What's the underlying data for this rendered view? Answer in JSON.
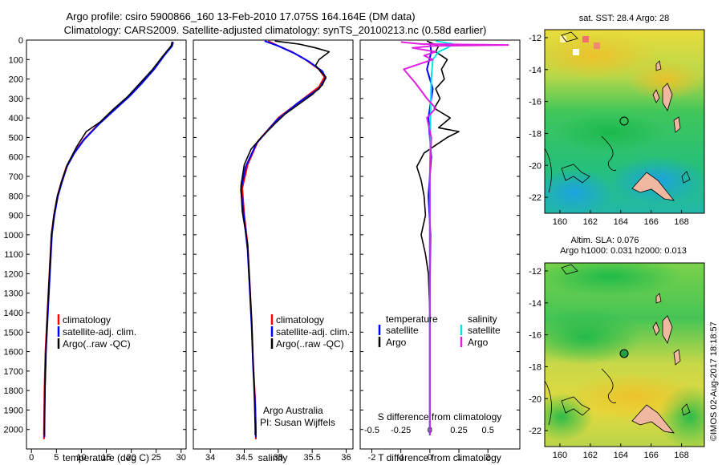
{
  "header": {
    "line1": "Argo profile: csiro 5900866_160 13-Feb-2010 17.075S 164.164E (DM data)",
    "line2": "Climatology: CARS2009. Satellite-adjusted climatology: synTS_20100213.nc (0.58d earlier)"
  },
  "footer": {
    "watermark": "©IMOS 02-Aug-2017 18:18:57",
    "credit_line1": "Argo Australia",
    "credit_line2": "PI: Susan Wijffels"
  },
  "colors": {
    "climatology": "#ff0000",
    "satellite": "#0000ff",
    "argo": "#000000",
    "salinity_satellite": "#00e5e5",
    "salinity_argo": "#e020e0"
  },
  "chart_data": [
    {
      "id": "temperature-profile",
      "type": "line",
      "xlabel": "temperature (deg C)",
      "ylabel": "",
      "xlim": [
        -1,
        31
      ],
      "ylim": [
        2100,
        0
      ],
      "xticks": [
        0,
        5,
        10,
        15,
        20,
        25,
        30
      ],
      "yticks": [
        0,
        100,
        200,
        300,
        400,
        500,
        600,
        700,
        800,
        900,
        1000,
        1100,
        1200,
        1300,
        1400,
        1500,
        1600,
        1700,
        1800,
        1900,
        2000
      ],
      "legend": [
        "climatology",
        "satellite-adj. clim.",
        "Argo(..raw -QC)"
      ],
      "series": [
        {
          "name": "climatology",
          "color": "#ff0000",
          "points": [
            [
              28.3,
              10
            ],
            [
              28.1,
              30
            ],
            [
              26.5,
              80
            ],
            [
              24.5,
              150
            ],
            [
              22,
              220
            ],
            [
              19.5,
              290
            ],
            [
              16.5,
              360
            ],
            [
              13.5,
              430
            ],
            [
              10.5,
              510
            ],
            [
              8.5,
              580
            ],
            [
              7,
              650
            ],
            [
              6,
              730
            ],
            [
              5.2,
              800
            ],
            [
              4.5,
              900
            ],
            [
              4.0,
              1000
            ],
            [
              3.6,
              1200
            ],
            [
              3.2,
              1400
            ],
            [
              2.8,
              1600
            ],
            [
              2.6,
              1800
            ],
            [
              2.5,
              2000
            ],
            [
              2.5,
              2050
            ]
          ]
        },
        {
          "name": "satellite",
          "color": "#0000ff",
          "points": [
            [
              28.4,
              10
            ],
            [
              28.2,
              30
            ],
            [
              26.6,
              80
            ],
            [
              24.6,
              150
            ],
            [
              22.2,
              220
            ],
            [
              19.6,
              290
            ],
            [
              16.6,
              360
            ],
            [
              13.6,
              430
            ],
            [
              10.6,
              510
            ],
            [
              8.6,
              580
            ],
            [
              7.1,
              650
            ],
            [
              6.1,
              730
            ],
            [
              5.3,
              800
            ],
            [
              4.6,
              900
            ],
            [
              4.1,
              1000
            ],
            [
              3.7,
              1200
            ],
            [
              3.3,
              1400
            ],
            [
              2.9,
              1600
            ],
            [
              2.7,
              1800
            ],
            [
              2.6,
              2000
            ],
            [
              2.6,
              2040
            ]
          ]
        },
        {
          "name": "Argo",
          "color": "#000000",
          "points": [
            [
              28.2,
              8
            ],
            [
              28.0,
              30
            ],
            [
              26.4,
              80
            ],
            [
              24.3,
              150
            ],
            [
              21.8,
              220
            ],
            [
              19.3,
              290
            ],
            [
              16.2,
              360
            ],
            [
              13.8,
              420
            ],
            [
              11,
              470
            ],
            [
              9,
              550
            ],
            [
              7.2,
              640
            ],
            [
              6.1,
              720
            ],
            [
              5.2,
              800
            ],
            [
              4.5,
              900
            ],
            [
              4.0,
              1000
            ],
            [
              3.6,
              1200
            ],
            [
              3.2,
              1400
            ],
            [
              2.9,
              1600
            ],
            [
              2.7,
              1800
            ],
            [
              2.6,
              2000
            ],
            [
              2.6,
              2030
            ]
          ]
        }
      ]
    },
    {
      "id": "salinity-profile",
      "type": "line",
      "xlabel": "salinity",
      "xlim": [
        33.75,
        36.1
      ],
      "ylim": [
        2100,
        0
      ],
      "xticks": [
        34,
        34.5,
        35,
        35.5,
        36
      ],
      "legend": [
        "climatology",
        "satellite-adj. clim.",
        "Argo(..raw -QC)"
      ],
      "series": [
        {
          "name": "climatology",
          "color": "#ff0000",
          "points": [
            [
              34.85,
              5
            ],
            [
              35.0,
              30
            ],
            [
              35.2,
              60
            ],
            [
              35.4,
              100
            ],
            [
              35.6,
              150
            ],
            [
              35.68,
              190
            ],
            [
              35.6,
              240
            ],
            [
              35.3,
              320
            ],
            [
              35.0,
              400
            ],
            [
              34.7,
              520
            ],
            [
              34.55,
              640
            ],
            [
              34.47,
              760
            ],
            [
              34.5,
              900
            ],
            [
              34.55,
              1050
            ],
            [
              34.58,
              1250
            ],
            [
              34.61,
              1450
            ],
            [
              34.63,
              1650
            ],
            [
              34.66,
              1850
            ],
            [
              34.67,
              2000
            ],
            [
              34.67,
              2050
            ]
          ]
        },
        {
          "name": "satellite",
          "color": "#0000ff",
          "points": [
            [
              34.8,
              5
            ],
            [
              35.0,
              30
            ],
            [
              35.25,
              70
            ],
            [
              35.45,
              110
            ],
            [
              35.65,
              160
            ],
            [
              35.7,
              195
            ],
            [
              35.6,
              250
            ],
            [
              35.3,
              320
            ],
            [
              34.98,
              410
            ],
            [
              34.68,
              530
            ],
            [
              34.52,
              650
            ],
            [
              34.45,
              770
            ],
            [
              34.5,
              920
            ],
            [
              34.55,
              1080
            ],
            [
              34.58,
              1280
            ],
            [
              34.61,
              1480
            ],
            [
              34.63,
              1680
            ],
            [
              34.66,
              1880
            ],
            [
              34.67,
              2000
            ],
            [
              34.67,
              2040
            ]
          ]
        },
        {
          "name": "Argo",
          "color": "#000000",
          "points": [
            [
              34.95,
              5
            ],
            [
              35.3,
              20
            ],
            [
              35.55,
              40
            ],
            [
              35.75,
              60
            ],
            [
              35.6,
              100
            ],
            [
              35.55,
              130
            ],
            [
              35.62,
              160
            ],
            [
              35.7,
              190
            ],
            [
              35.65,
              230
            ],
            [
              35.5,
              280
            ],
            [
              35.3,
              330
            ],
            [
              35.1,
              380
            ],
            [
              34.95,
              430
            ],
            [
              34.75,
              500
            ],
            [
              34.6,
              560
            ],
            [
              34.5,
              640
            ],
            [
              34.45,
              750
            ],
            [
              34.47,
              880
            ],
            [
              34.55,
              1050
            ],
            [
              34.58,
              1250
            ],
            [
              34.61,
              1450
            ],
            [
              34.63,
              1650
            ],
            [
              34.65,
              1850
            ],
            [
              34.66,
              2000
            ],
            [
              34.66,
              2030
            ]
          ]
        }
      ]
    },
    {
      "id": "difference-profile",
      "type": "line",
      "xlabel": "T difference from climatology",
      "xlabel_top": "S difference from climatology",
      "xlim": [
        -2.4,
        3.1
      ],
      "ylim": [
        2100,
        0
      ],
      "xticks": [
        -2,
        -1,
        0,
        1,
        2
      ],
      "xticks_top": [
        -0.5,
        -0.25,
        0,
        0.25,
        0.5
      ],
      "legend_temperature": {
        "title": "temperature",
        "entries": [
          "satellite",
          "Argo"
        ]
      },
      "legend_salinity": {
        "title": "salinity",
        "entries": [
          "satellite",
          "Argo"
        ]
      },
      "series": [
        {
          "name": "T satellite",
          "color": "#0000ff",
          "points": [
            [
              0,
              10
            ],
            [
              0.05,
              60
            ],
            [
              -0.1,
              150
            ],
            [
              0.1,
              250
            ],
            [
              -0.05,
              400
            ],
            [
              0.05,
              600
            ],
            [
              -0.05,
              800
            ],
            [
              0.02,
              1000
            ],
            [
              0,
              1300
            ],
            [
              0,
              1600
            ],
            [
              0,
              2030
            ]
          ]
        },
        {
          "name": "T Argo",
          "color": "#000000",
          "points": [
            [
              -0.1,
              5
            ],
            [
              0.3,
              30
            ],
            [
              0.2,
              60
            ],
            [
              0.6,
              100
            ],
            [
              0.4,
              150
            ],
            [
              0.5,
              200
            ],
            [
              0.2,
              250
            ],
            [
              0.35,
              300
            ],
            [
              0.15,
              350
            ],
            [
              0.7,
              400
            ],
            [
              0.3,
              450
            ],
            [
              1.0,
              470
            ],
            [
              0.6,
              500
            ],
            [
              0.2,
              540
            ],
            [
              -0.2,
              580
            ],
            [
              -0.45,
              650
            ],
            [
              -0.3,
              720
            ],
            [
              -0.2,
              800
            ],
            [
              -0.15,
              900
            ],
            [
              -0.3,
              1000
            ],
            [
              -0.15,
              1100
            ],
            [
              -0.05,
              1200
            ],
            [
              0,
              1400
            ],
            [
              0,
              1600
            ],
            [
              0,
              2030
            ]
          ]
        },
        {
          "name": "S satellite",
          "color": "#00e5e5",
          "points": [
            [
              0.2,
              5
            ],
            [
              0.8,
              20
            ],
            [
              0.6,
              40
            ],
            [
              0.3,
              60
            ],
            [
              0.1,
              100
            ],
            [
              0.05,
              200
            ],
            [
              0.02,
              400
            ],
            [
              0,
              700
            ],
            [
              0,
              1000
            ],
            [
              0,
              2030
            ]
          ]
        },
        {
          "name": "S Argo",
          "color": "#e020e0",
          "points": [
            [
              -1.0,
              10
            ],
            [
              -0.3,
              20
            ],
            [
              2.7,
              25
            ],
            [
              0.1,
              30
            ],
            [
              -0.6,
              40
            ],
            [
              0.2,
              60
            ],
            [
              -0.2,
              80
            ],
            [
              0.1,
              100
            ],
            [
              -0.9,
              150
            ],
            [
              -0.5,
              220
            ],
            [
              -0.1,
              300
            ],
            [
              0.2,
              350
            ],
            [
              -0.1,
              400
            ],
            [
              0.05,
              500
            ],
            [
              0,
              700
            ],
            [
              0,
              1000
            ],
            [
              0,
              2030
            ]
          ]
        }
      ]
    },
    {
      "id": "sst-map",
      "type": "heatmap",
      "title": "sat. SST: 28.4  Argo: 28",
      "xlim": [
        159,
        169.5
      ],
      "ylim": [
        -23,
        -11.5
      ],
      "xticks": [
        160,
        162,
        164,
        166,
        168
      ],
      "yticks": [
        -12,
        -14,
        -16,
        -18,
        -20,
        -22
      ],
      "argo_position": [
        164.164,
        -17.075
      ]
    },
    {
      "id": "sla-map",
      "type": "heatmap",
      "title_line1": "Altim. SLA: 0.076",
      "title_line2": "Argo h1000: 0.031 h2000: 0.013",
      "xlim": [
        159,
        169.5
      ],
      "ylim": [
        -23,
        -11.5
      ],
      "xticks": [
        160,
        162,
        164,
        166,
        168
      ],
      "yticks": [
        -12,
        -14,
        -16,
        -18,
        -20,
        -22
      ],
      "argo_position": [
        164.164,
        -17.075
      ]
    }
  ]
}
